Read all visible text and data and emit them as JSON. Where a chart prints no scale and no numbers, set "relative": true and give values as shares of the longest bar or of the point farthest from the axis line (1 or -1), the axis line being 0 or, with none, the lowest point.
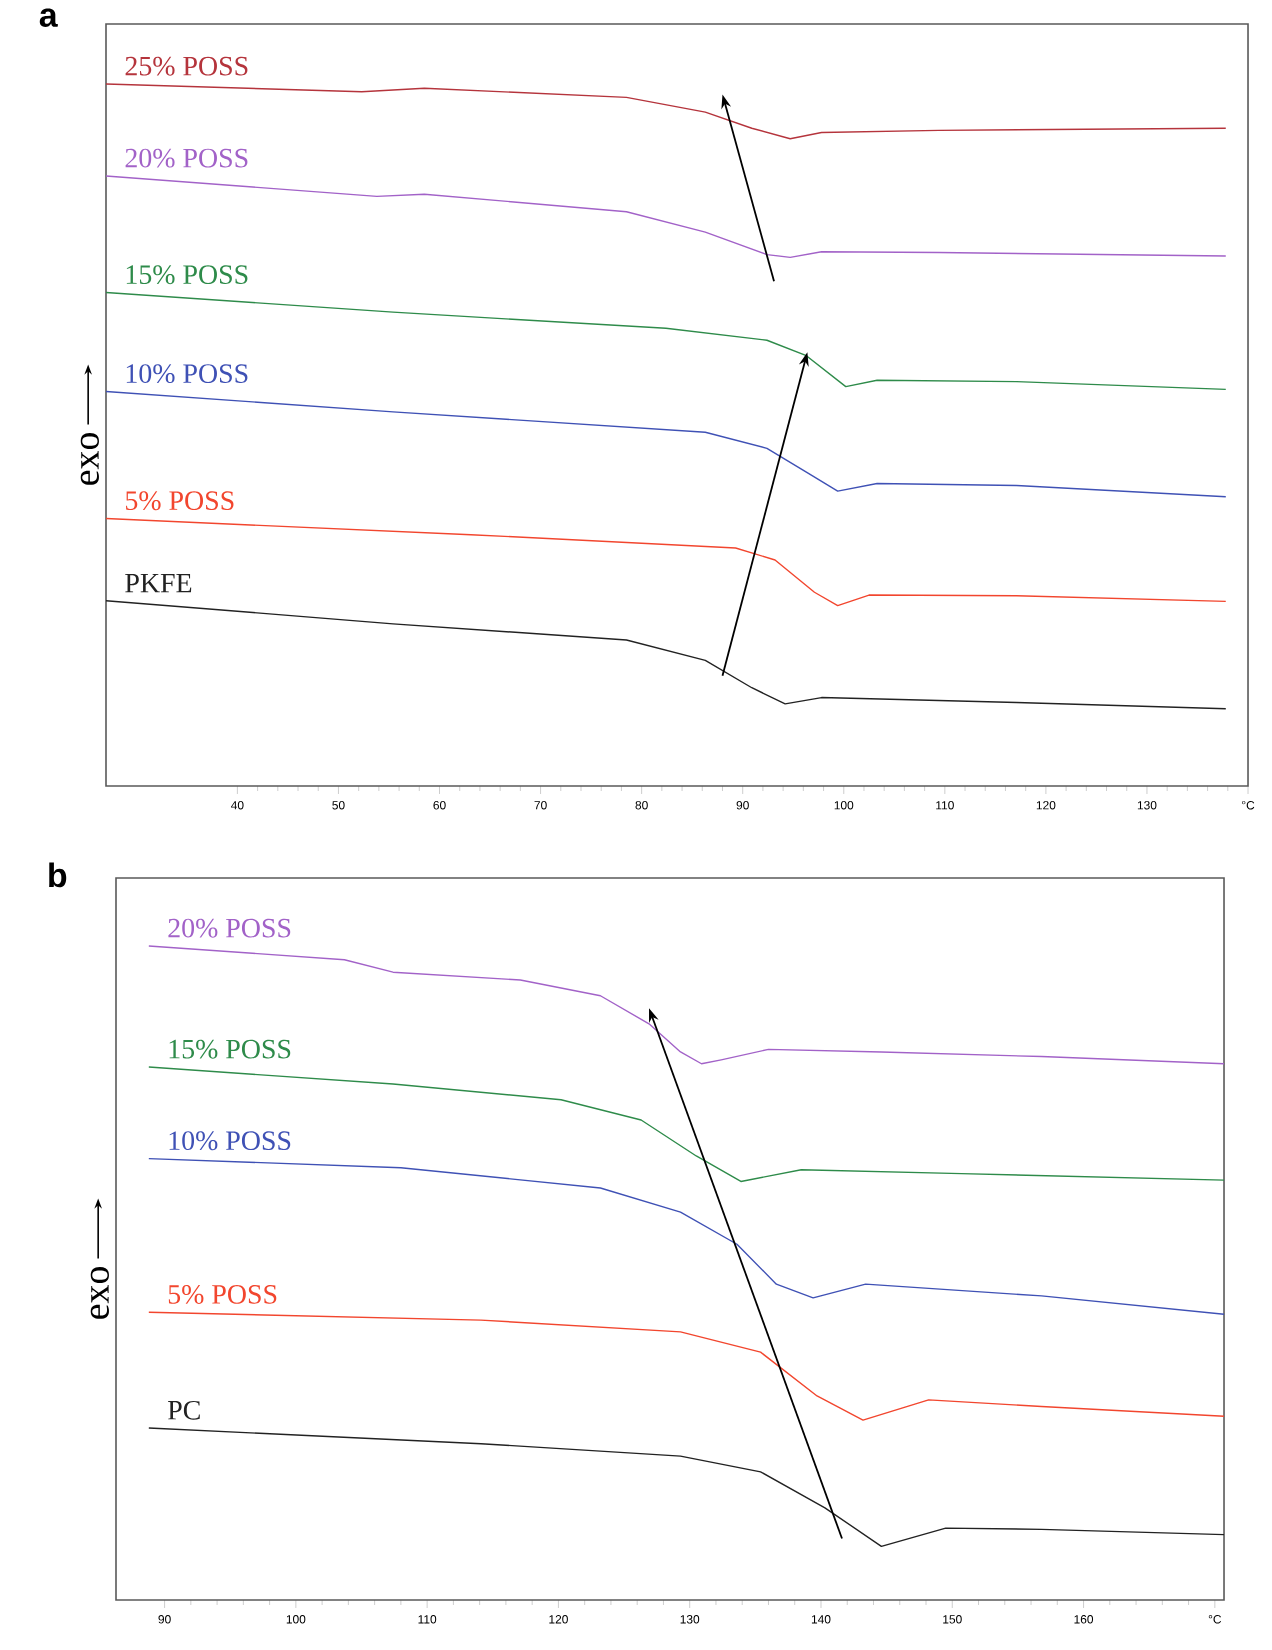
{
  "chart_data": [
    {
      "type": "line",
      "title": "a",
      "ylabel": "exo",
      "relative": true,
      "tick_labels": "x",
      "xlim": [
        27,
        140
      ],
      "xticks": [
        40,
        50,
        60,
        70,
        80,
        90,
        100,
        110,
        120,
        130,
        {
          "value": 140,
          "label": "°C"
        }
      ],
      "series": [
        {
          "name": "25% POSS",
          "color": "#b5343c",
          "x": [
            27,
            52.3,
            58.5,
            78.5,
            86.3,
            90.9,
            94.7,
            97.8,
            109.4,
            137.8
          ],
          "values": [
            1.0,
            0.989,
            0.994,
            0.981,
            0.96,
            0.937,
            0.922,
            0.931,
            0.934,
            0.937
          ]
        },
        {
          "name": "20% POSS",
          "color": "#a262c8",
          "x": [
            27,
            53.8,
            58.5,
            78.5,
            86.3,
            92.4,
            94.7,
            97.8,
            109.4,
            137.8
          ],
          "values": [
            0.869,
            0.84,
            0.843,
            0.818,
            0.789,
            0.757,
            0.753,
            0.761,
            0.76,
            0.755
          ]
        },
        {
          "name": "15% POSS",
          "color": "#2e8b4a",
          "x": [
            27,
            55.4,
            82.4,
            92.4,
            96.3,
            100.2,
            103.3,
            117.1,
            137.8
          ],
          "values": [
            0.703,
            0.675,
            0.652,
            0.635,
            0.613,
            0.569,
            0.578,
            0.576,
            0.565
          ]
        },
        {
          "name": "10% POSS",
          "color": "#3f51b5",
          "x": [
            27,
            55.4,
            86.3,
            92.4,
            96.3,
            99.4,
            103.3,
            117.1,
            137.8
          ],
          "values": [
            0.562,
            0.533,
            0.504,
            0.481,
            0.447,
            0.42,
            0.431,
            0.428,
            0.412
          ]
        },
        {
          "name": "5% POSS",
          "color": "#f2462e",
          "x": [
            27,
            63.1,
            89.3,
            93.2,
            97.1,
            99.4,
            102.5,
            117.1,
            137.8
          ],
          "values": [
            0.381,
            0.358,
            0.339,
            0.322,
            0.276,
            0.257,
            0.272,
            0.271,
            0.263
          ]
        },
        {
          "name": "PKFE",
          "color": "#222222",
          "x": [
            27,
            55.4,
            78.5,
            86.3,
            90.9,
            94.2,
            97.8,
            117.1,
            137.8
          ],
          "values": [
            0.264,
            0.231,
            0.208,
            0.179,
            0.14,
            0.117,
            0.126,
            0.119,
            0.11
          ]
        }
      ]
    },
    {
      "type": "line",
      "title": "b",
      "ylabel": "exo",
      "relative": true,
      "tick_labels": "x",
      "xlim": [
        86.3,
        170.7
      ],
      "xticks": [
        90,
        100,
        110,
        120,
        130,
        140,
        150,
        160,
        {
          "value": 170,
          "label": "°C"
        }
      ],
      "series": [
        {
          "name": "20% POSS",
          "color": "#a262c8",
          "x": [
            88.8,
            103.7,
            107.4,
            117.1,
            123.2,
            126.9,
            129.3,
            130.9,
            132.4,
            136.0,
            144.6,
            156.8,
            170.7
          ],
          "values": [
            1.0,
            0.979,
            0.96,
            0.948,
            0.924,
            0.881,
            0.838,
            0.82,
            0.826,
            0.842,
            0.838,
            0.831,
            0.82
          ]
        },
        {
          "name": "15% POSS",
          "color": "#2e8b4a",
          "x": [
            88.8,
            107.4,
            120.2,
            126.3,
            130.5,
            133.9,
            138.5,
            150.7,
            170.7
          ],
          "values": [
            0.815,
            0.789,
            0.765,
            0.734,
            0.679,
            0.64,
            0.658,
            0.652,
            0.642
          ]
        },
        {
          "name": "10% POSS",
          "color": "#3f51b5",
          "x": [
            88.8,
            108.0,
            123.2,
            129.3,
            133.6,
            136.6,
            139.4,
            143.4,
            156.8,
            170.7
          ],
          "values": [
            0.675,
            0.661,
            0.63,
            0.593,
            0.544,
            0.483,
            0.462,
            0.483,
            0.465,
            0.437
          ]
        },
        {
          "name": "5% POSS",
          "color": "#f2462e",
          "x": [
            88.8,
            114.1,
            129.3,
            135.4,
            139.7,
            143.2,
            148.2,
            156.8,
            170.7
          ],
          "values": [
            0.44,
            0.428,
            0.41,
            0.379,
            0.312,
            0.275,
            0.306,
            0.296,
            0.281
          ]
        },
        {
          "name": "PC",
          "color": "#222222",
          "x": [
            88.8,
            114.1,
            129.3,
            135.4,
            140.3,
            144.6,
            149.5,
            156.8,
            170.7
          ],
          "values": [
            0.263,
            0.239,
            0.22,
            0.196,
            0.141,
            0.082,
            0.11,
            0.108,
            0.1
          ]
        }
      ]
    }
  ]
}
